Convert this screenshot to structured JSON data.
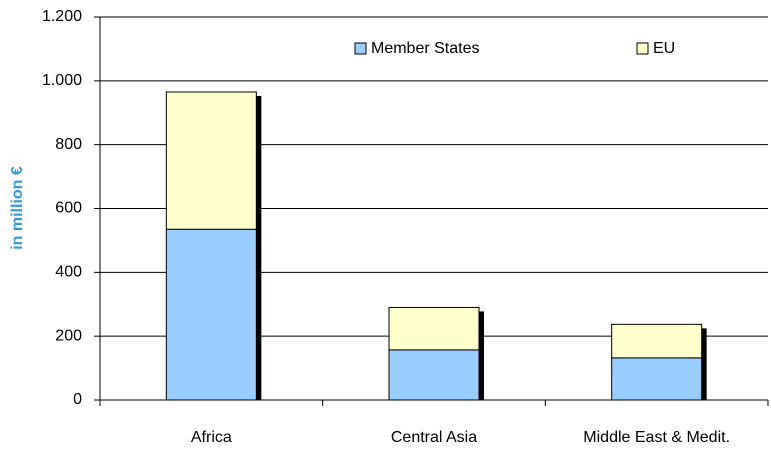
{
  "chart_data": {
    "type": "stacked_bar",
    "y_label": "in million €",
    "categories": [
      "Africa",
      "Central Asia",
      "Middle East & Medit."
    ],
    "series": [
      {
        "name": "Member States",
        "color": "#99ccff",
        "values": [
          535,
          157,
          132
        ]
      },
      {
        "name": "EU",
        "color": "#ffffcc",
        "values": [
          430,
          133,
          105
        ]
      }
    ],
    "ylim": [
      0,
      1200
    ],
    "yticks": [
      0,
      200,
      400,
      600,
      800,
      {
        "value": 1000,
        "label": "1.000"
      },
      {
        "value": 1200,
        "label": "1.200"
      }
    ],
    "grid": true
  }
}
